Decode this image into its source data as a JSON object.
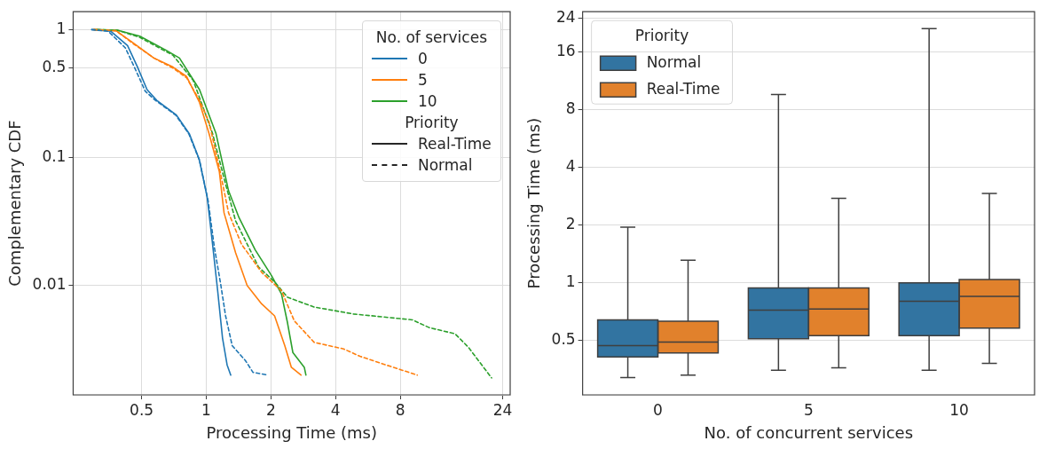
{
  "chart_data": [
    {
      "type": "line",
      "xlabel": "Processing Time (ms)",
      "ylabel": "Complementary CDF",
      "legend_title": "No. of services",
      "log": "xy",
      "xlim": [
        0.24,
        26
      ],
      "ylim": [
        0.0014,
        1.38
      ],
      "xticks": [
        0.5,
        1,
        2,
        4,
        8,
        24
      ],
      "yticks": [
        1,
        0.5,
        0.1,
        0.01
      ],
      "grid": true,
      "legend": "top right",
      "annotations": [
        "Priority",
        "Real-Time",
        "Normal"
      ],
      "series": [
        {
          "name": "0",
          "color": "#1f77b4",
          "line_style": "solid",
          "x": [
            0.293,
            0.36,
            0.43,
            0.476,
            0.53,
            0.588,
            0.726,
            0.835,
            0.927,
            1.01,
            1.07,
            1.13,
            1.19,
            1.25,
            1.3
          ],
          "values": [
            1,
            0.97,
            0.75,
            0.52,
            0.34,
            0.28,
            0.215,
            0.153,
            0.097,
            0.049,
            0.021,
            0.0091,
            0.0039,
            0.0024,
            0.002
          ]
        },
        {
          "name": "5",
          "color": "#ff7f0e",
          "line_style": "solid",
          "x": [
            0.3,
            0.38,
            0.46,
            0.57,
            0.7,
            0.81,
            0.93,
            1.03,
            1.15,
            1.21,
            1.37,
            1.55,
            1.81,
            2.08,
            2.32,
            2.49,
            2.76
          ],
          "values": [
            1,
            0.98,
            0.78,
            0.6,
            0.51,
            0.43,
            0.27,
            0.154,
            0.078,
            0.037,
            0.018,
            0.01,
            0.0072,
            0.0058,
            0.0034,
            0.0023,
            0.002
          ]
        },
        {
          "name": "10",
          "color": "#2ca02c",
          "line_style": "solid",
          "x": [
            0.3,
            0.385,
            0.49,
            0.65,
            0.75,
            0.93,
            1.11,
            1.27,
            1.42,
            1.69,
            2.01,
            2.24,
            2.39,
            2.53,
            2.86,
            2.91
          ],
          "values": [
            1,
            0.99,
            0.89,
            0.69,
            0.6,
            0.34,
            0.154,
            0.055,
            0.034,
            0.019,
            0.012,
            0.0086,
            0.0051,
            0.003,
            0.0023,
            0.002
          ]
        },
        {
          "color": "#1f77b4",
          "line_style": "dashed",
          "x": [
            0.293,
            0.35,
            0.42,
            0.465,
            0.52,
            0.58,
            0.72,
            0.83,
            0.93,
            1.02,
            1.09,
            1.17,
            1.23,
            1.32,
            1.52,
            1.65,
            1.94
          ],
          "values": [
            1,
            0.97,
            0.72,
            0.5,
            0.33,
            0.28,
            0.215,
            0.153,
            0.095,
            0.046,
            0.02,
            0.01,
            0.0058,
            0.0034,
            0.0026,
            0.0021,
            0.002
          ]
        },
        {
          "color": "#ff7f0e",
          "line_style": "dashed",
          "x": [
            0.3,
            0.38,
            0.46,
            0.57,
            0.7,
            0.81,
            0.93,
            1.03,
            1.16,
            1.27,
            1.46,
            1.81,
            2.24,
            2.57,
            3.18,
            4.36,
            5.2,
            6.86,
            9.6
          ],
          "values": [
            1,
            0.98,
            0.77,
            0.6,
            0.5,
            0.42,
            0.28,
            0.19,
            0.078,
            0.037,
            0.021,
            0.0127,
            0.0091,
            0.0053,
            0.0036,
            0.0032,
            0.0028,
            0.0024,
            0.002
          ]
        },
        {
          "color": "#2ca02c",
          "line_style": "dashed",
          "x": [
            0.31,
            0.385,
            0.49,
            0.7,
            0.87,
            1.07,
            1.23,
            1.37,
            1.75,
            2.08,
            2.39,
            3.18,
            4.84,
            9.1,
            10.9,
            14.4,
            16.6,
            21.3
          ],
          "values": [
            1,
            0.99,
            0.87,
            0.63,
            0.4,
            0.154,
            0.062,
            0.032,
            0.014,
            0.0107,
            0.0081,
            0.0068,
            0.006,
            0.0054,
            0.0047,
            0.0042,
            0.0033,
            0.0019
          ]
        }
      ]
    },
    {
      "type": "box",
      "categories": [
        "0",
        "5",
        "10"
      ],
      "xlabel": "No. of concurrent services",
      "ylabel": "Processing Time (ms)",
      "legend_title": "Priority",
      "log": "y",
      "ylim": [
        0.26,
        26
      ],
      "yticks": [
        0.5,
        1,
        2,
        4,
        8,
        16,
        24
      ],
      "grid": "y",
      "legend": "top left",
      "series": [
        {
          "name": "Normal",
          "color": "#3274a1",
          "boxes": [
            {
              "low": 0.32,
              "q1": 0.41,
              "median": 0.47,
              "q3": 0.64,
              "high": 1.95
            },
            {
              "low": 0.35,
              "q1": 0.51,
              "median": 0.72,
              "q3": 0.94,
              "high": 9.6
            },
            {
              "low": 0.35,
              "q1": 0.53,
              "median": 0.8,
              "q3": 1.0,
              "high": 21.2
            }
          ]
        },
        {
          "name": "Real-Time",
          "color": "#e1812c",
          "boxes": [
            {
              "low": 0.33,
              "q1": 0.43,
              "median": 0.49,
              "q3": 0.63,
              "high": 1.31
            },
            {
              "low": 0.36,
              "q1": 0.53,
              "median": 0.73,
              "q3": 0.94,
              "high": 2.76
            },
            {
              "low": 0.38,
              "q1": 0.58,
              "median": 0.85,
              "q3": 1.04,
              "high": 2.93
            }
          ]
        }
      ]
    }
  ]
}
